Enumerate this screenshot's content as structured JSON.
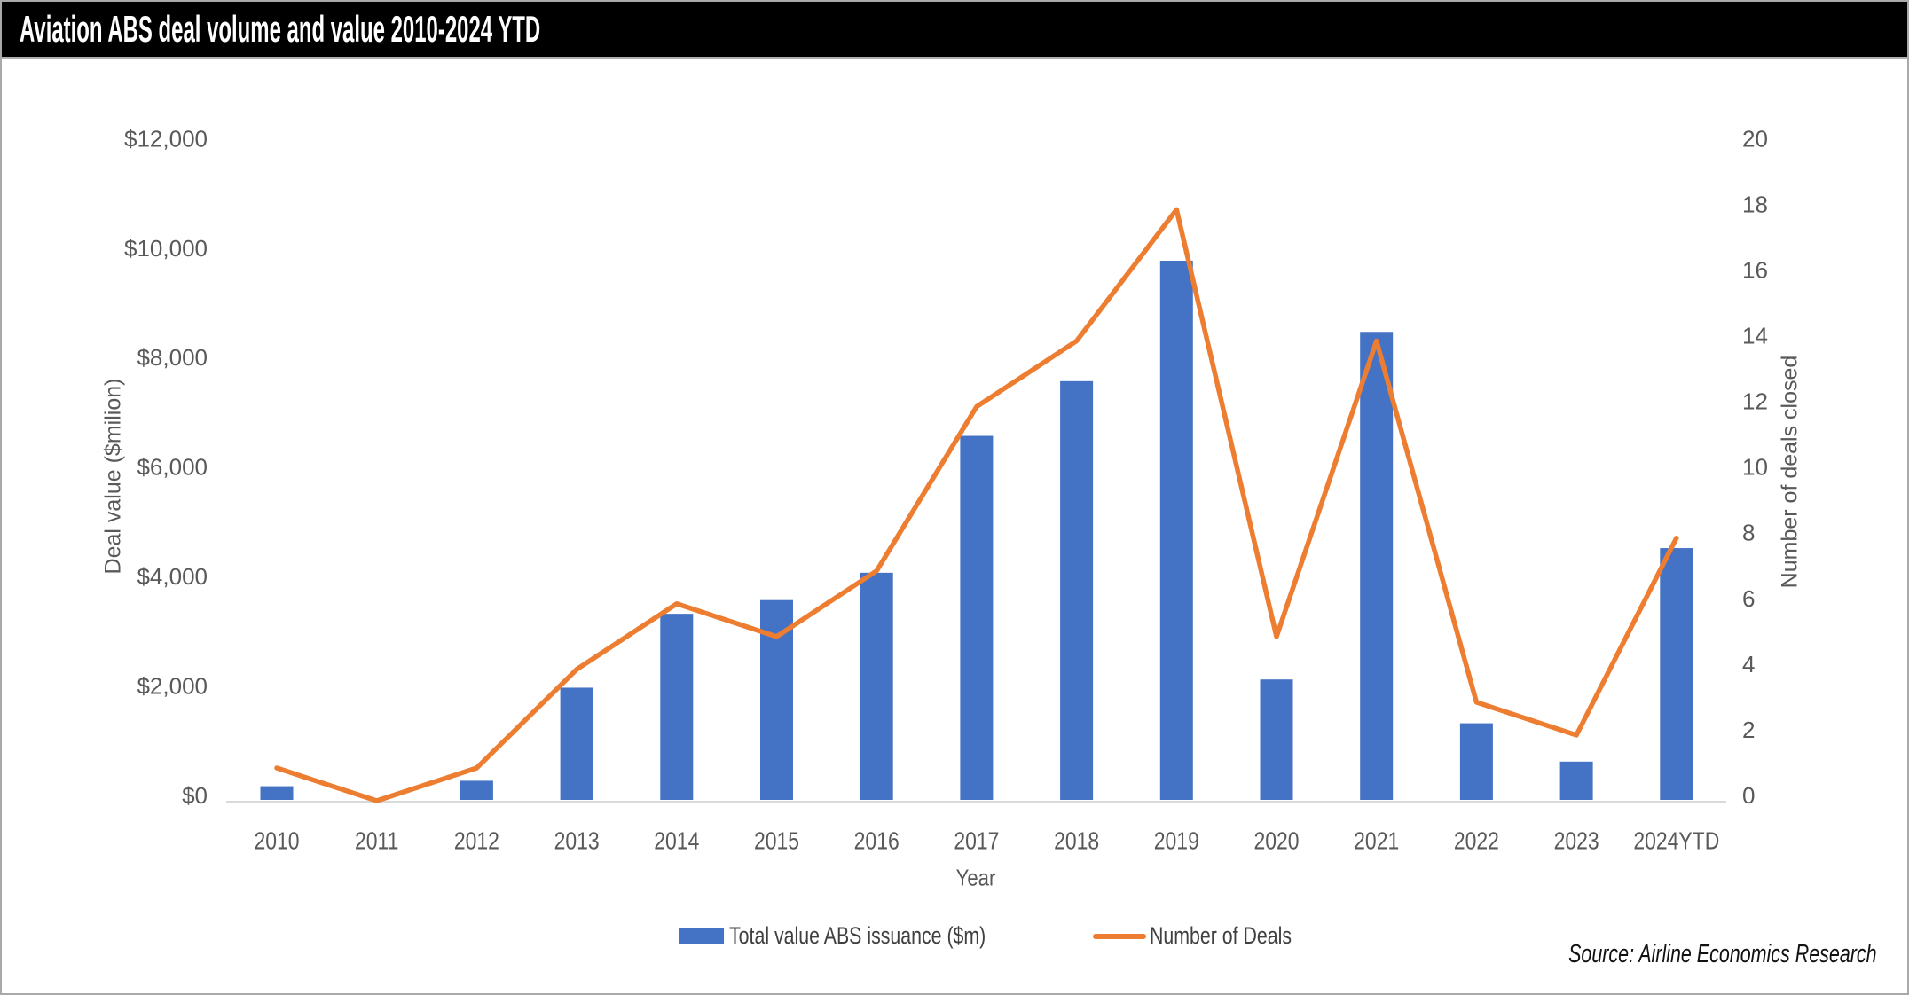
{
  "title": "Aviation ABS deal volume and value 2010-2024 YTD",
  "source": "Source: Airline Economics Research",
  "colors": {
    "bar": "#4472C4",
    "line": "#ED7D31",
    "axis_line": "#D9D9D9",
    "tick_text": "#595959",
    "title_bg": "#000000",
    "title_fg": "#FFFFFF"
  },
  "legend": {
    "bar_label": "Total value ABS issuance ($m)",
    "line_label": "Number of Deals"
  },
  "chart_data": {
    "type": "bar",
    "subtype": "bar-line-combo",
    "title": "Aviation ABS deal volume and value 2010-2024 YTD",
    "categories": [
      "2010",
      "2011",
      "2012",
      "2013",
      "2014",
      "2015",
      "2016",
      "2017",
      "2018",
      "2019",
      "2020",
      "2021",
      "2022",
      "2023",
      "2024YTD"
    ],
    "series": [
      {
        "name": "Total value ABS issuance ($m)",
        "type": "bar",
        "axis": "left",
        "color": "#4472C4",
        "values": [
          250,
          0,
          350,
          2050,
          3400,
          3650,
          4150,
          6650,
          7650,
          9850,
          2200,
          8550,
          1400,
          700,
          4600
        ]
      },
      {
        "name": "Number of Deals",
        "type": "line",
        "axis": "right",
        "color": "#ED7D31",
        "values": [
          1,
          0,
          1,
          4,
          6,
          5,
          7,
          12,
          14,
          18,
          5,
          14,
          3,
          2,
          8
        ]
      }
    ],
    "xlabel": "Year",
    "left_axis": {
      "label": "Deal value ($milion)",
      "min": 0,
      "max": 12000,
      "step": 2000,
      "tick_labels": [
        "$0",
        "$2,000",
        "$4,000",
        "$6,000",
        "$8,000",
        "$10,000",
        "$12,000"
      ]
    },
    "right_axis": {
      "label": "Number of deals closed",
      "min": 0,
      "max": 20,
      "step": 2,
      "tick_labels": [
        "0",
        "2",
        "4",
        "6",
        "8",
        "10",
        "12",
        "14",
        "16",
        "18",
        "20"
      ]
    },
    "grid": false,
    "legend_position": "bottom"
  }
}
